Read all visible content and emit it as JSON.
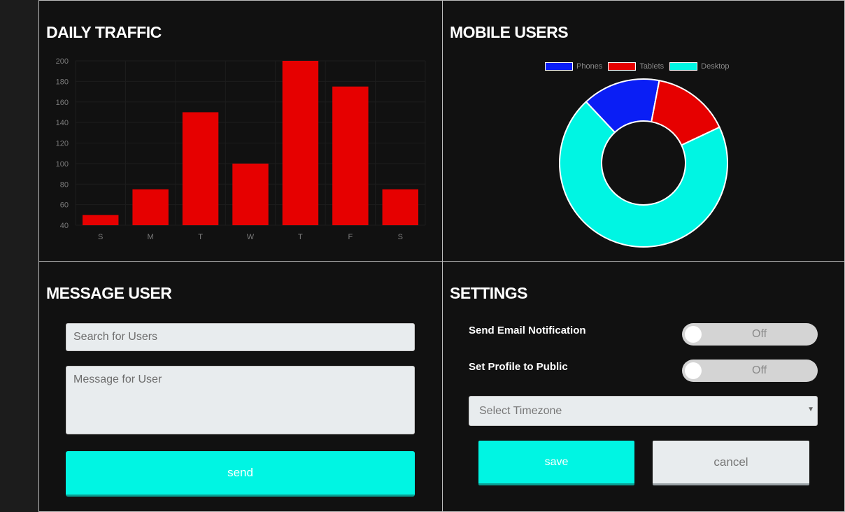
{
  "panels": {
    "traffic": {
      "title": "DAILY TRAFFIC"
    },
    "mobile": {
      "title": "MOBILE USERS"
    },
    "message": {
      "title": "MESSAGE USER",
      "search_placeholder": "Search for Users",
      "message_placeholder": "Message for User",
      "send_label": "send"
    },
    "settings": {
      "title": "SETTINGS",
      "email_label": "Send Email Notification",
      "email_state": "Off",
      "public_label": "Set Profile to Public",
      "public_state": "Off",
      "timezone_placeholder": "Select Timezone",
      "save_label": "save",
      "cancel_label": "cancel"
    }
  },
  "colors": {
    "bar": "#e60000",
    "accent": "#00f5e3",
    "phones": "#0a1ef5",
    "tablets": "#e60000",
    "desktop": "#00f5e3"
  },
  "chart_data": [
    {
      "type": "bar",
      "categories": [
        "S",
        "M",
        "T",
        "W",
        "T",
        "F",
        "S"
      ],
      "values": [
        50,
        75,
        150,
        100,
        200,
        175,
        75
      ],
      "ylim": [
        40,
        200
      ],
      "yticks": [
        40,
        60,
        80,
        100,
        120,
        140,
        160,
        180,
        200
      ],
      "grid": true,
      "title": "",
      "xlabel": "",
      "ylabel": ""
    },
    {
      "type": "pie",
      "style": "doughnut",
      "legend_position": "top",
      "labels": [
        "Phones",
        "Tablets",
        "Desktop"
      ],
      "values": [
        15,
        15,
        70
      ],
      "colors": [
        "#0a1ef5",
        "#e60000",
        "#00f5e3"
      ]
    }
  ]
}
